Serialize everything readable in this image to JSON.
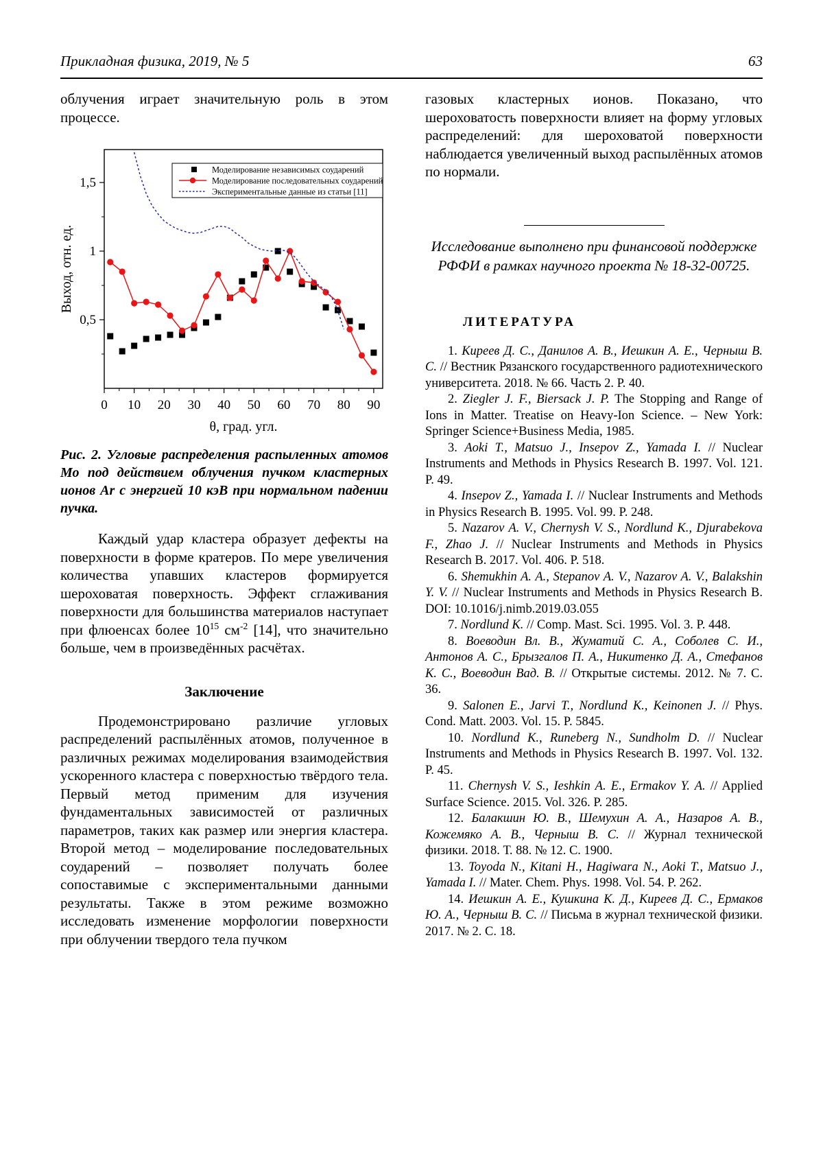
{
  "header": {
    "journal": "Прикладная физика, 2019, № 5",
    "page_number": "63"
  },
  "left_column": {
    "paragraph_top": "облучения играет значительную роль в этом процессе.",
    "figure_caption": "Рис. 2. Угловые распределения распыленных атомов Мо под действием облучения пучком кластерных ионов Ar с энергией 10 кэВ при нормальном падении пучка.",
    "paragraph_craters": {
      "before": "Каждый удар кластера образует дефекты на поверхности в форме кратеров. По мере увеличения количества упавших кластеров формируется шероховатая поверхность. Эффект сглаживания поверхности для большинства материалов наступает при флюенсах более 10",
      "sup1": "15",
      "mid": " см",
      "sup2": "-2",
      "after": " [14], что значительно больше, чем в произведённых расчётах."
    },
    "conclusion_heading": "Заключение",
    "conclusion_paragraph": "Продемонстрировано различие угловых распределений распылённых атомов, полученное в различных режимах моделирования взаимодействия ускоренного кластера с поверхностью твёрдого тела. Первый метод применим для изучения фундаментальных зависимостей от различных параметров, таких как размер или энергия кластера. Второй метод – моделирование последовательных соударений – позволяет получать более сопоставимые с экспериментальными данными результаты. Также в этом режиме возможно исследовать изменение морфологии поверхности при облучении твердого тела пучком"
  },
  "right_column": {
    "paragraph_top": "газовых кластерных ионов. Показано, что шероховатость поверхности влияет на форму угловых распределений: для шероховатой поверхности наблюдается увеличенный выход распылённых атомов по нормали.",
    "funding_note": "Исследование выполнено при финансовой поддержке РФФИ в рамках научного проекта № 18-32-00725.",
    "references_heading": "ЛИТЕРАТУРА",
    "references": [
      {
        "num": "1.",
        "authors": "Киреев Д. С., Данилов А. В., Иешкин А. Е., Черныш В. С.",
        "rest": " // Вестник Рязанского государственного радиотехнического университета. 2018. № 66. Часть 2. Р. 40."
      },
      {
        "num": "2.",
        "authors": "Ziegler J. F., Biersack J. P.",
        "rest": " The Stopping and Range of Ions in Matter. Treatise on Heavy-Ion Science. – New York: Springer Science+Business Media, 1985."
      },
      {
        "num": "3.",
        "authors": "Aoki T., Matsuo J., Insepov Z., Yamada I.",
        "rest": " // Nuclear Instruments and Methods in Physics Research B. 1997. Vol. 121. P. 49."
      },
      {
        "num": "4.",
        "authors": "Insepov Z., Yamada I.",
        "rest": " // Nuclear Instruments and Methods in Physics Research B. 1995. Vol. 99. P. 248."
      },
      {
        "num": "5.",
        "authors": "Nazarov A. V., Chernysh V. S., Nordlund K., Djurabekova F., Zhao J.",
        "rest": " // Nuclear Instruments and Methods in Physics Research B. 2017. Vol. 406. P. 518."
      },
      {
        "num": "6.",
        "authors": "Shemukhin A. A., Stepanov A. V., Nazarov A. V., Balakshin Y. V.",
        "rest": " // Nuclear Instruments and Methods in Physics Research B. DOI: 10.1016/j.nimb.2019.03.055"
      },
      {
        "num": "7.",
        "authors": "Nordlund K.",
        "rest": " // Comp. Mast. Sci. 1995. Vol. 3. P. 448."
      },
      {
        "num": "8.",
        "authors": "Воеводин Вл. В., Жуматий С. А., Соболев С. И., Антонов А. С., Брызгалов П. А., Никитенко Д. А., Стефанов К. С., Воеводин Вад. В.",
        "rest": " // Открытые системы. 2012. № 7. С. 36."
      },
      {
        "num": "9.",
        "authors": "Salonen E., Jarvi T., Nordlund K., Keinonen J.",
        "rest": " // Phys. Cond. Matt. 2003. Vol. 15. P. 5845."
      },
      {
        "num": "10.",
        "authors": "Nordlund K., Runeberg N., Sundholm D.",
        "rest": " // Nuclear Instruments and Methods in Physics Research B. 1997. Vol. 132. P. 45."
      },
      {
        "num": "11.",
        "authors": "Chernysh V. S., Ieshkin A. E., Ermakov Y. A.",
        "rest": " // Applied Surface Science. 2015. Vol. 326. P. 285."
      },
      {
        "num": "12.",
        "authors": "Балакшин Ю. В., Шемухин А. А., Назаров А. В., Кожемяко А. В., Черныш В. С.",
        "rest": " // Журнал технической физики. 2018. Т. 88. № 12. С. 1900."
      },
      {
        "num": "13.",
        "authors": "Toyoda N., Kitani H., Hagiwara N., Aoki T., Matsuo J., Yamada I.",
        "rest": " // Mater. Chem. Phys. 1998. Vol. 54. P. 262."
      },
      {
        "num": "14.",
        "authors": "Иешкин А. Е., Кушкина К. Д., Киреев Д. С., Ермаков Ю. А., Черныш В. С.",
        "rest": " // Письма в журнал технической физики. 2017. № 2. С. 18."
      }
    ]
  },
  "chart_data": {
    "type": "line-scatter",
    "title": "",
    "xlabel": "θ, град. угл.",
    "ylabel": "Выход, отн. ед.",
    "xlim": [
      0,
      93
    ],
    "ylim": [
      0,
      1.74
    ],
    "x_ticks": [
      0,
      10,
      20,
      30,
      40,
      50,
      60,
      70,
      80,
      90
    ],
    "x_minor_step": 5,
    "y_ticks": [
      {
        "value": 0.5,
        "label": "0,5"
      },
      {
        "value": 1.0,
        "label": "1"
      },
      {
        "value": 1.5,
        "label": "1,5"
      }
    ],
    "y_minor": [
      0.25,
      0.75,
      1.25
    ],
    "grid": false,
    "legend_position": "top-right-inside",
    "series": [
      {
        "name": "Моделирование независимых соударений",
        "type": "scatter",
        "marker": "square",
        "color": "#000000",
        "x": [
          2,
          6,
          10,
          14,
          18,
          22,
          26,
          30,
          34,
          38,
          42,
          46,
          50,
          54,
          58,
          62,
          66,
          70,
          74,
          78,
          82,
          86,
          90
        ],
        "y": [
          0.38,
          0.27,
          0.31,
          0.36,
          0.37,
          0.39,
          0.39,
          0.44,
          0.48,
          0.52,
          0.66,
          0.78,
          0.83,
          0.88,
          1.0,
          0.85,
          0.76,
          0.74,
          0.59,
          0.57,
          0.49,
          0.45,
          0.26
        ]
      },
      {
        "name": "Моделирование последовательных соударений",
        "type": "line-scatter",
        "marker": "circle",
        "color": "#e81717",
        "x": [
          2,
          6,
          10,
          14,
          18,
          22,
          26,
          30,
          34,
          38,
          42,
          46,
          50,
          54,
          58,
          62,
          66,
          70,
          74,
          78,
          82,
          86,
          90
        ],
        "y": [
          0.92,
          0.85,
          0.62,
          0.63,
          0.61,
          0.53,
          0.42,
          0.46,
          0.67,
          0.83,
          0.66,
          0.72,
          0.64,
          0.93,
          0.8,
          1.0,
          0.78,
          0.77,
          0.7,
          0.63,
          0.43,
          0.24,
          0.12
        ]
      },
      {
        "name": "Экспериментальные данные из статьи [11]",
        "type": "line",
        "style": "dashed",
        "marker": "none",
        "color": "#2b2ba6",
        "x": [
          10,
          12,
          14,
          16,
          18,
          20,
          22,
          24,
          26,
          28,
          30,
          32,
          34,
          36,
          38,
          40,
          42,
          44,
          46,
          48,
          50,
          52,
          54,
          56,
          58,
          60,
          62,
          64,
          66,
          68,
          70,
          72,
          74,
          75,
          76,
          77,
          78,
          79,
          80
        ],
        "y": [
          1.72,
          1.55,
          1.42,
          1.33,
          1.27,
          1.22,
          1.19,
          1.165,
          1.15,
          1.135,
          1.13,
          1.135,
          1.15,
          1.165,
          1.18,
          1.18,
          1.165,
          1.13,
          1.1,
          1.06,
          1.035,
          1.015,
          1.005,
          1.0,
          1.005,
          1.005,
          0.99,
          0.95,
          0.89,
          0.83,
          0.78,
          0.745,
          0.715,
          0.69,
          0.66,
          0.62,
          0.565,
          0.5,
          0.43
        ]
      }
    ]
  }
}
